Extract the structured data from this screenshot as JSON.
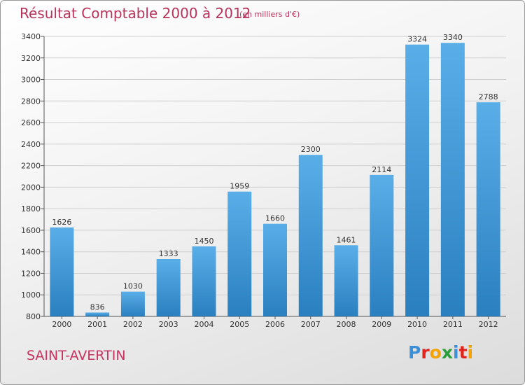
{
  "title": "Résultat Comptable 2000 à 2012",
  "subtitle": "(en milliers d'€)",
  "commune": "SAINT-AVERTIN",
  "logo": {
    "letters": [
      {
        "ch": "P",
        "color": "#3a8fd8"
      },
      {
        "ch": "r",
        "color": "#e2231a"
      },
      {
        "ch": "o",
        "color": "#f4a300"
      },
      {
        "ch": "x",
        "color": "#2a9e3a"
      },
      {
        "ch": "i",
        "color": "#3a8fd8"
      },
      {
        "ch": "t",
        "color": "#e2231a"
      },
      {
        "ch": "i",
        "color": "#f4a300"
      }
    ]
  },
  "colors": {
    "bar_top": "#5aaee8",
    "bar_bottom": "#2a7fbf",
    "accent": "#b8325a"
  },
  "chart_data": {
    "type": "bar",
    "categories": [
      "2000",
      "2001",
      "2002",
      "2003",
      "2004",
      "2005",
      "2006",
      "2007",
      "2008",
      "2009",
      "2010",
      "2011",
      "2012"
    ],
    "values": [
      1626,
      836,
      1030,
      1333,
      1450,
      1959,
      1660,
      2300,
      1461,
      2114,
      3324,
      3340,
      2788
    ],
    "ylim": [
      800,
      3400
    ],
    "yticks": [
      800,
      1000,
      1200,
      1400,
      1600,
      1800,
      2000,
      2200,
      2400,
      2600,
      2800,
      3000,
      3200,
      3400
    ],
    "grid": true,
    "legend": "none"
  }
}
